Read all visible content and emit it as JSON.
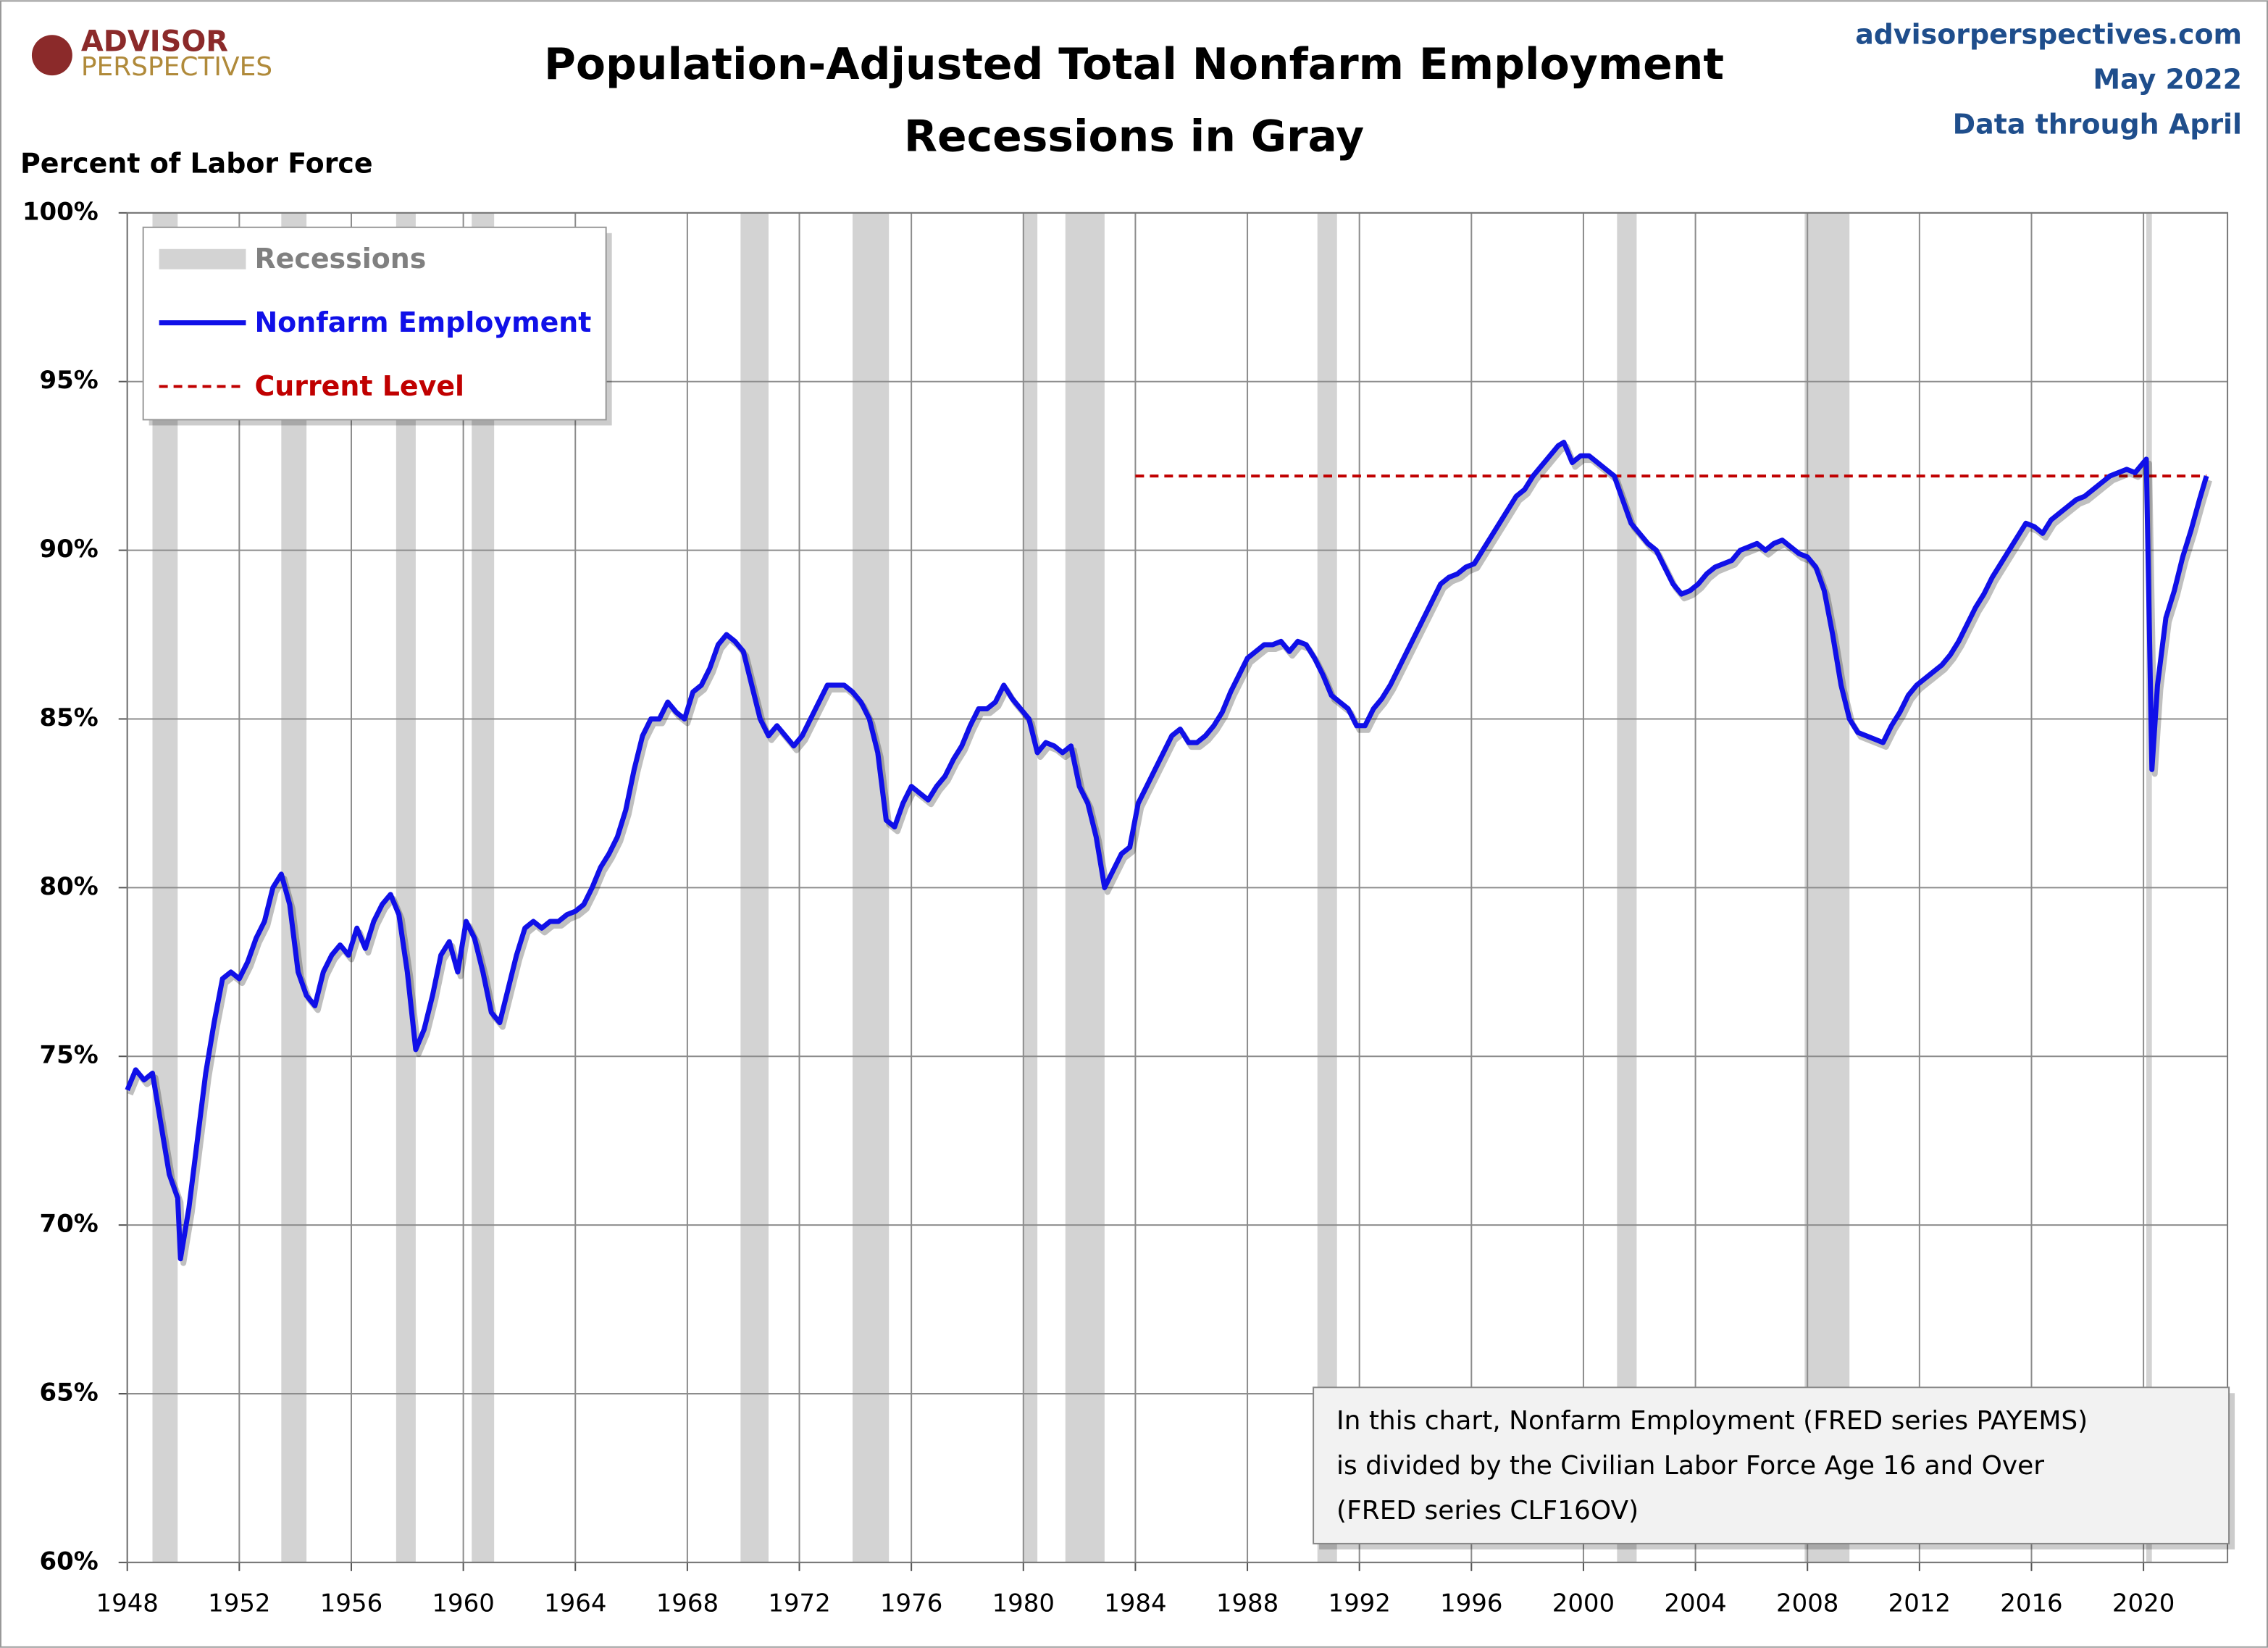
{
  "chart_data": {
    "type": "line",
    "brand": [
      "ADVISOR",
      "PERSPECTIVES"
    ],
    "title": "Population-Adjusted Total Nonfarm Employment",
    "subtitle": "Recessions in Gray",
    "source": [
      "advisorperspectives.com",
      "May 2022",
      "Data through April"
    ],
    "ylabel": "Percent of Labor Force",
    "note": [
      "In this chart, Nonfarm Employment (FRED series PAYEMS)",
      "is divided by the Civilian Labor Force Age 16 and Over",
      "(FRED series CLF16OV)"
    ],
    "xlim": [
      1948,
      2023
    ],
    "xticks": [
      1948,
      1952,
      1956,
      1960,
      1964,
      1968,
      1972,
      1976,
      1980,
      1984,
      1988,
      1992,
      1996,
      2000,
      2004,
      2008,
      2012,
      2016,
      2020
    ],
    "ylim": [
      60,
      100
    ],
    "yticks": [
      {
        "value": 60,
        "label": "60%"
      },
      {
        "value": 65,
        "label": "65%"
      },
      {
        "value": 70,
        "label": "70%"
      },
      {
        "value": 75,
        "label": "75%"
      },
      {
        "value": 80,
        "label": "80%"
      },
      {
        "value": 85,
        "label": "85%"
      },
      {
        "value": 90,
        "label": "90%"
      },
      {
        "value": 95,
        "label": "95%"
      },
      {
        "value": 100,
        "label": "100%"
      }
    ],
    "grid": true,
    "legend": "upper left",
    "recessions": {
      "name": "Recessions",
      "color": "#d3d3d3",
      "ranges": [
        [
          1948.9,
          1949.8
        ],
        [
          1953.5,
          1954.4
        ],
        [
          1957.6,
          1958.3
        ],
        [
          1960.3,
          1961.1
        ],
        [
          1969.9,
          1970.9
        ],
        [
          1973.9,
          1975.2
        ],
        [
          1980.0,
          1980.5
        ],
        [
          1981.5,
          1982.9
        ],
        [
          1990.5,
          1991.2
        ],
        [
          2001.2,
          2001.9
        ],
        [
          2007.9,
          2009.5
        ],
        [
          2020.1,
          2020.3
        ]
      ]
    },
    "series": [
      {
        "name": "Nonfarm Employment",
        "color": "#1010e8",
        "x": [
          1948.0,
          1948.3,
          1948.6,
          1948.9,
          1949.2,
          1949.5,
          1949.8,
          1949.9,
          1950.2,
          1950.5,
          1950.8,
          1951.1,
          1951.4,
          1951.7,
          1952.0,
          1952.3,
          1952.6,
          1952.9,
          1953.2,
          1953.5,
          1953.8,
          1954.1,
          1954.4,
          1954.7,
          1955.0,
          1955.3,
          1955.6,
          1955.9,
          1956.2,
          1956.5,
          1956.8,
          1957.1,
          1957.4,
          1957.7,
          1958.0,
          1958.3,
          1958.6,
          1958.9,
          1959.2,
          1959.5,
          1959.8,
          1960.1,
          1960.4,
          1960.7,
          1961.0,
          1961.3,
          1961.6,
          1961.9,
          1962.2,
          1962.5,
          1962.8,
          1963.1,
          1963.4,
          1963.7,
          1964.0,
          1964.3,
          1964.6,
          1964.9,
          1965.2,
          1965.5,
          1965.8,
          1966.1,
          1966.4,
          1966.7,
          1967.0,
          1967.3,
          1967.6,
          1967.9,
          1968.2,
          1968.5,
          1968.8,
          1969.1,
          1969.4,
          1969.7,
          1970.0,
          1970.3,
          1970.6,
          1970.9,
          1971.2,
          1971.5,
          1971.8,
          1972.1,
          1972.4,
          1972.7,
          1973.0,
          1973.3,
          1973.6,
          1973.9,
          1974.2,
          1974.5,
          1974.8,
          1975.1,
          1975.4,
          1975.7,
          1976.0,
          1976.3,
          1976.6,
          1976.9,
          1977.2,
          1977.5,
          1977.8,
          1978.1,
          1978.4,
          1978.7,
          1979.0,
          1979.3,
          1979.6,
          1979.9,
          1980.2,
          1980.5,
          1980.8,
          1981.1,
          1981.4,
          1981.7,
          1982.0,
          1982.3,
          1982.6,
          1982.9,
          1983.2,
          1983.5,
          1983.8,
          1984.1,
          1984.4,
          1984.7,
          1985.0,
          1985.3,
          1985.6,
          1985.9,
          1986.2,
          1986.5,
          1986.8,
          1987.1,
          1987.4,
          1987.7,
          1988.0,
          1988.3,
          1988.6,
          1988.9,
          1989.2,
          1989.5,
          1989.8,
          1990.1,
          1990.4,
          1990.7,
          1991.0,
          1991.3,
          1991.6,
          1991.9,
          1992.2,
          1992.5,
          1992.8,
          1993.1,
          1993.4,
          1993.7,
          1994.0,
          1994.3,
          1994.6,
          1994.9,
          1995.2,
          1995.5,
          1995.8,
          1996.1,
          1996.4,
          1996.7,
          1997.0,
          1997.3,
          1997.6,
          1997.9,
          1998.2,
          1998.5,
          1998.8,
          1999.1,
          1999.3,
          1999.6,
          1999.9,
          2000.2,
          2000.5,
          2000.8,
          2001.1,
          2001.4,
          2001.7,
          2002.0,
          2002.3,
          2002.6,
          2002.9,
          2003.2,
          2003.5,
          2003.8,
          2004.1,
          2004.4,
          2004.7,
          2005.0,
          2005.3,
          2005.6,
          2005.9,
          2006.2,
          2006.5,
          2006.8,
          2007.1,
          2007.4,
          2007.7,
          2008.0,
          2008.3,
          2008.6,
          2008.9,
          2009.2,
          2009.5,
          2009.8,
          2010.1,
          2010.4,
          2010.7,
          2011.0,
          2011.3,
          2011.6,
          2011.9,
          2012.2,
          2012.5,
          2012.8,
          2013.1,
          2013.4,
          2013.7,
          2014.0,
          2014.3,
          2014.6,
          2014.9,
          2015.2,
          2015.5,
          2015.8,
          2016.1,
          2016.4,
          2016.7,
          2017.0,
          2017.3,
          2017.6,
          2017.9,
          2018.2,
          2018.5,
          2018.8,
          2019.1,
          2019.4,
          2019.7,
          2020.0,
          2020.1,
          2020.3,
          2020.5,
          2020.8,
          2021.1,
          2021.4,
          2021.7,
          2022.0,
          2022.25
        ],
        "values": [
          74.0,
          74.6,
          74.3,
          74.5,
          73.0,
          71.5,
          70.8,
          69.0,
          70.5,
          72.5,
          74.5,
          76.0,
          77.3,
          77.5,
          77.3,
          77.8,
          78.5,
          79.0,
          80.0,
          80.4,
          79.5,
          77.5,
          76.8,
          76.5,
          77.5,
          78.0,
          78.3,
          78.0,
          78.8,
          78.2,
          79.0,
          79.5,
          79.8,
          79.2,
          77.5,
          75.2,
          75.8,
          76.8,
          78.0,
          78.4,
          77.5,
          79.0,
          78.5,
          77.5,
          76.3,
          76.0,
          77.0,
          78.0,
          78.8,
          79.0,
          78.8,
          79.0,
          79.0,
          79.2,
          79.3,
          79.5,
          80.0,
          80.6,
          81.0,
          81.5,
          82.3,
          83.5,
          84.5,
          85.0,
          85.0,
          85.5,
          85.2,
          85.0,
          85.8,
          86.0,
          86.5,
          87.2,
          87.5,
          87.3,
          87.0,
          86.0,
          85.0,
          84.5,
          84.8,
          84.5,
          84.2,
          84.5,
          85.0,
          85.5,
          86.0,
          86.0,
          86.0,
          85.8,
          85.5,
          85.0,
          84.0,
          82.0,
          81.8,
          82.5,
          83.0,
          82.8,
          82.6,
          83.0,
          83.3,
          83.8,
          84.2,
          84.8,
          85.3,
          85.3,
          85.5,
          86.0,
          85.6,
          85.3,
          85.0,
          84.0,
          84.3,
          84.2,
          84.0,
          84.2,
          83.0,
          82.5,
          81.5,
          80.0,
          80.5,
          81.0,
          81.2,
          82.5,
          83.0,
          83.5,
          84.0,
          84.5,
          84.7,
          84.3,
          84.3,
          84.5,
          84.8,
          85.2,
          85.8,
          86.3,
          86.8,
          87.0,
          87.2,
          87.2,
          87.3,
          87.0,
          87.3,
          87.2,
          86.8,
          86.3,
          85.7,
          85.5,
          85.3,
          84.8,
          84.8,
          85.3,
          85.6,
          86.0,
          86.5,
          87.0,
          87.5,
          88.0,
          88.5,
          89.0,
          89.2,
          89.3,
          89.5,
          89.6,
          90.0,
          90.4,
          90.8,
          91.2,
          91.6,
          91.8,
          92.2,
          92.5,
          92.8,
          93.1,
          93.2,
          92.6,
          92.8,
          92.8,
          92.6,
          92.4,
          92.2,
          91.5,
          90.8,
          90.5,
          90.2,
          90.0,
          89.5,
          89.0,
          88.7,
          88.8,
          89.0,
          89.3,
          89.5,
          89.6,
          89.7,
          90.0,
          90.1,
          90.2,
          90.0,
          90.2,
          90.3,
          90.1,
          89.9,
          89.8,
          89.5,
          88.8,
          87.5,
          86.0,
          85.0,
          84.6,
          84.5,
          84.4,
          84.3,
          84.8,
          85.2,
          85.7,
          86.0,
          86.2,
          86.4,
          86.6,
          86.9,
          87.3,
          87.8,
          88.3,
          88.7,
          89.2,
          89.6,
          90.0,
          90.4,
          90.8,
          90.7,
          90.5,
          90.9,
          91.1,
          91.3,
          91.5,
          91.6,
          91.8,
          92.0,
          92.2,
          92.3,
          92.4,
          92.3,
          92.6,
          92.7,
          83.5,
          86.0,
          88.0,
          88.8,
          89.8,
          90.6,
          91.5,
          92.2
        ]
      }
    ],
    "reference_line": {
      "name": "Current Level",
      "color": "#c00000",
      "value": 92.2,
      "x": [
        1984,
        2022.25
      ]
    }
  }
}
